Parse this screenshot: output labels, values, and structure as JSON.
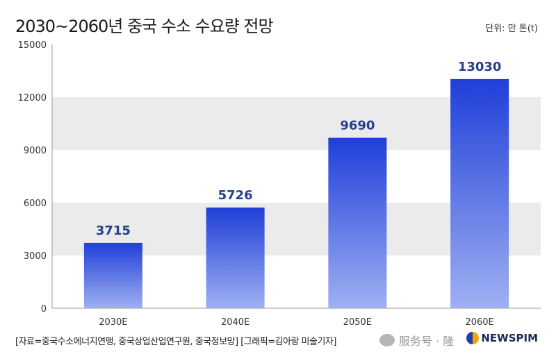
{
  "chart_data": {
    "type": "bar",
    "title": "2030~2060년 중국 수소 수요량 전망",
    "unit_label": "단위: 만 톤(t)",
    "categories": [
      "2030E",
      "2040E",
      "2050E",
      "2060E"
    ],
    "values": [
      3715,
      5726,
      9690,
      13030
    ],
    "ylim": [
      0,
      15000
    ],
    "yticks": [
      0,
      3000,
      6000,
      9000,
      12000,
      15000
    ],
    "grid": "alternating bands",
    "bar_color_top": "#1f3fd8",
    "bar_color_bottom": "#9fb0f2",
    "label_color": "#23408f"
  },
  "footer": {
    "source": "[자료=중국수소에너지연맹, 중국상업산업연구원, 중국정보망] [그래픽=김아랑 미술기자]",
    "watermark": "服务号 · 隆",
    "logo": "NEWSPIM"
  }
}
